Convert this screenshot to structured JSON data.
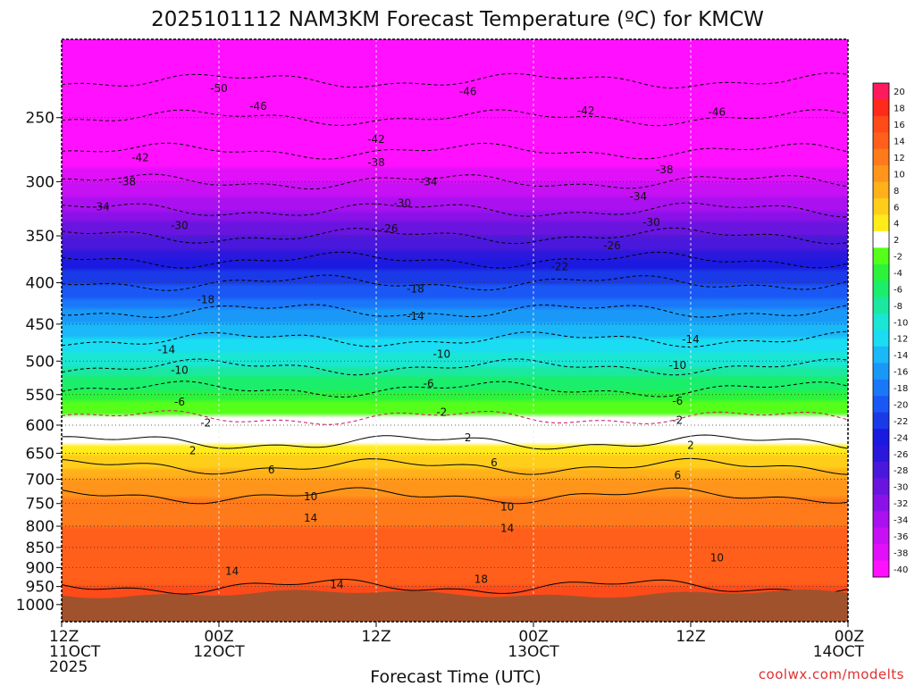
{
  "chart_data": {
    "type": "heatmap",
    "title": "2025101112 NAM3KM Forecast Temperature (ºC) for KMCW",
    "xlabel": "Forecast Time (UTC)",
    "ylabel": "",
    "x_ticks": [
      {
        "hour": 0,
        "line1": "12Z",
        "line2": "11OCT",
        "line3": "2025"
      },
      {
        "hour": 12,
        "line1": "00Z",
        "line2": "12OCT",
        "line3": ""
      },
      {
        "hour": 24,
        "line1": "12Z",
        "line2": "",
        "line3": ""
      },
      {
        "hour": 36,
        "line1": "00Z",
        "line2": "13OCT",
        "line3": ""
      },
      {
        "hour": 48,
        "line1": "12Z",
        "line2": "",
        "line3": ""
      },
      {
        "hour": 60,
        "line1": "00Z",
        "line2": "14OCT",
        "line3": ""
      }
    ],
    "xlim_hours": [
      0,
      60
    ],
    "y_ticks": [
      250,
      300,
      350,
      400,
      450,
      500,
      550,
      600,
      650,
      700,
      750,
      800,
      850,
      900,
      950,
      1000
    ],
    "ylim_hpa": [
      200,
      1050
    ],
    "y_scale": "log-pressure",
    "grid": true,
    "colorbar": {
      "levels": [
        20,
        18,
        16,
        14,
        12,
        10,
        8,
        6,
        4,
        2,
        -2,
        -4,
        -6,
        -8,
        -10,
        -12,
        -14,
        -16,
        -18,
        -20,
        -22,
        -24,
        -26,
        -28,
        -30,
        -32,
        -34,
        -36,
        -38,
        -40
      ],
      "colors": [
        "#ff1a5e",
        "#ff2a1a",
        "#ff4a1a",
        "#ff5f1a",
        "#ff7a1a",
        "#ff951a",
        "#ffb01a",
        "#ffce1a",
        "#ffec1a",
        "#ffffff",
        "#55ff1a",
        "#2cf23c",
        "#1aee6a",
        "#1ae8a0",
        "#1ae6d4",
        "#1adcf2",
        "#1ab8f8",
        "#1a98f8",
        "#1a78f8",
        "#1a58f5",
        "#1a3ae8",
        "#1a1ae0",
        "#2a18dc",
        "#4a18dc",
        "#6a14e0",
        "#8a12e8",
        "#aa10f0",
        "#c810f4",
        "#e010f8",
        "#ff10ff"
      ],
      "placement": "right"
    },
    "surface_color": "#a0522d",
    "surface_pressure_hpa": 970,
    "temperature_profile_at_start": [
      {
        "p": 200,
        "t": -54
      },
      {
        "p": 250,
        "t": -46
      },
      {
        "p": 300,
        "t": -38
      },
      {
        "p": 350,
        "t": -30
      },
      {
        "p": 400,
        "t": -22
      },
      {
        "p": 450,
        "t": -16
      },
      {
        "p": 500,
        "t": -11
      },
      {
        "p": 550,
        "t": -5
      },
      {
        "p": 600,
        "t": -1
      },
      {
        "p": 650,
        "t": 4
      },
      {
        "p": 700,
        "t": 8
      },
      {
        "p": 750,
        "t": 11
      },
      {
        "p": 800,
        "t": 12
      },
      {
        "p": 850,
        "t": 12
      },
      {
        "p": 900,
        "t": 13
      },
      {
        "p": 950,
        "t": 14
      },
      {
        "p": 1000,
        "t": 15
      }
    ],
    "contour_labels": [
      {
        "text": "-50",
        "hour": 12,
        "p": 230
      },
      {
        "text": "-46",
        "hour": 15,
        "p": 242
      },
      {
        "text": "-46",
        "hour": 31,
        "p": 232
      },
      {
        "text": "-42",
        "hour": 40,
        "p": 245
      },
      {
        "text": "-46",
        "hour": 50,
        "p": 246
      },
      {
        "text": "-42",
        "hour": 24,
        "p": 266
      },
      {
        "text": "-42",
        "hour": 6,
        "p": 280
      },
      {
        "text": "-38",
        "hour": 24,
        "p": 284
      },
      {
        "text": "-38",
        "hour": 5,
        "p": 300
      },
      {
        "text": "-38",
        "hour": 46,
        "p": 290
      },
      {
        "text": "-34",
        "hour": 28,
        "p": 300
      },
      {
        "text": "-34",
        "hour": 3,
        "p": 322
      },
      {
        "text": "-34",
        "hour": 44,
        "p": 313
      },
      {
        "text": "-30",
        "hour": 26,
        "p": 319
      },
      {
        "text": "-30",
        "hour": 9,
        "p": 340
      },
      {
        "text": "-30",
        "hour": 45,
        "p": 337
      },
      {
        "text": "-26",
        "hour": 25,
        "p": 343
      },
      {
        "text": "-26",
        "hour": 42,
        "p": 360
      },
      {
        "text": "-22",
        "hour": 38,
        "p": 382
      },
      {
        "text": "-18",
        "hour": 11,
        "p": 420
      },
      {
        "text": "-18",
        "hour": 27,
        "p": 407
      },
      {
        "text": "-14",
        "hour": 27,
        "p": 440
      },
      {
        "text": "-14",
        "hour": 8,
        "p": 484
      },
      {
        "text": "-14",
        "hour": 48,
        "p": 470
      },
      {
        "text": "-10",
        "hour": 29,
        "p": 490
      },
      {
        "text": "-10",
        "hour": 9,
        "p": 513
      },
      {
        "text": "-10",
        "hour": 47,
        "p": 506
      },
      {
        "text": "-6",
        "hour": 28,
        "p": 533
      },
      {
        "text": "-6",
        "hour": 9,
        "p": 562
      },
      {
        "text": "-6",
        "hour": 47,
        "p": 560
      },
      {
        "text": "-2",
        "hour": 29,
        "p": 578
      },
      {
        "text": "-2",
        "hour": 11,
        "p": 596
      },
      {
        "text": "-2",
        "hour": 47,
        "p": 592
      },
      {
        "text": "2",
        "hour": 31,
        "p": 622
      },
      {
        "text": "2",
        "hour": 10,
        "p": 645
      },
      {
        "text": "2",
        "hour": 48,
        "p": 635
      },
      {
        "text": "6",
        "hour": 16,
        "p": 681
      },
      {
        "text": "6",
        "hour": 33,
        "p": 668
      },
      {
        "text": "6",
        "hour": 47,
        "p": 692
      },
      {
        "text": "10",
        "hour": 19,
        "p": 735
      },
      {
        "text": "10",
        "hour": 34,
        "p": 757
      },
      {
        "text": "10",
        "hour": 50,
        "p": 875
      },
      {
        "text": "14",
        "hour": 19,
        "p": 782
      },
      {
        "text": "14",
        "hour": 34,
        "p": 805
      },
      {
        "text": "14",
        "hour": 13,
        "p": 910
      },
      {
        "text": "14",
        "hour": 21,
        "p": 945
      },
      {
        "text": "18",
        "hour": 32,
        "p": 930
      }
    ]
  },
  "credit": "coolwx.com/modelts"
}
